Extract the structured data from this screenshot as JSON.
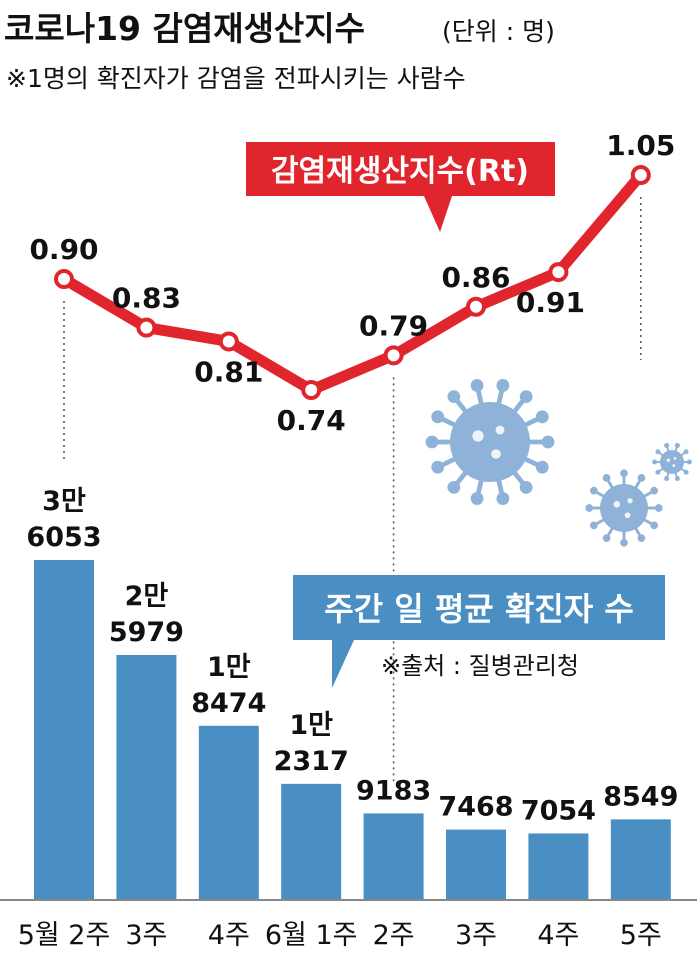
{
  "header": {
    "title": "코로나19 감염재생산지수",
    "unit": "(단위 : 명)",
    "note": "※1명의 확진자가 감염을 전파시키는 사람수"
  },
  "legend": {
    "line_label": "감염재생산지수(Rt)",
    "bar_label": "주간 일 평균 확진자 수"
  },
  "source": "※출처 : 질병관리청",
  "colors": {
    "line": "#e0262c",
    "bar": "#4a8fc4",
    "virus": "#8fb3d8",
    "baseline": "#888888"
  },
  "chart_data": [
    {
      "type": "line",
      "series": [
        {
          "name": "감염재생산지수(Rt)",
          "values": [
            0.9,
            0.83,
            0.81,
            0.74,
            0.79,
            0.86,
            0.91,
            1.05
          ]
        }
      ],
      "categories": [
        "5월 2주",
        "3주",
        "4주",
        "6월 1주",
        "2주",
        "3주",
        "4주",
        "5주"
      ],
      "data_labels": [
        "0.90",
        "0.83",
        "0.81",
        "0.74",
        "0.79",
        "0.86",
        "0.91",
        "1.05"
      ]
    },
    {
      "type": "bar",
      "series": [
        {
          "name": "주간 일 평균 확진자 수",
          "values": [
            36053,
            25979,
            18474,
            12317,
            9183,
            7468,
            7054,
            8549
          ]
        }
      ],
      "categories": [
        "5월 2주",
        "3주",
        "4주",
        "6월 1주",
        "2주",
        "3주",
        "4주",
        "5주"
      ],
      "data_labels": [
        [
          "3만",
          "6053"
        ],
        [
          "2만",
          "5979"
        ],
        [
          "1만",
          "8474"
        ],
        [
          "1만",
          "2317"
        ],
        [
          "9183"
        ],
        [
          "7468"
        ],
        [
          "7054"
        ],
        [
          "8549"
        ]
      ]
    }
  ]
}
